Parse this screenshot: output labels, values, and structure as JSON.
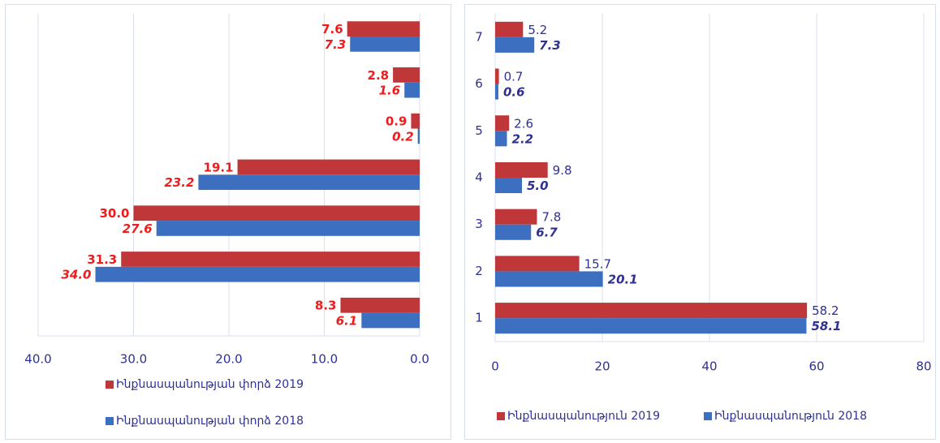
{
  "chart_data": [
    {
      "type": "bar",
      "orientation": "horizontal",
      "categories": [
        null,
        null,
        null,
        null,
        null,
        null,
        null
      ],
      "series": [
        {
          "name": "Ինքնասպանության փորձ 2019",
          "color": "#c0373a",
          "label_color": "#ee1c1c",
          "label_style": "bold",
          "values": [
            8.3,
            31.3,
            30.0,
            19.1,
            0.9,
            2.8,
            7.6
          ],
          "value_labels": [
            "8.3",
            "31.3",
            "30.0",
            "19.1",
            "0.9",
            "2.8",
            "7.6"
          ]
        },
        {
          "name": "Ինքնասպանության փորձ 2018",
          "color": "#3d6fc1",
          "label_color": "#ee1c1c",
          "label_style": "bold-italic",
          "values": [
            6.1,
            34.0,
            27.6,
            23.2,
            0.2,
            1.6,
            7.3
          ],
          "value_labels": [
            "6.1",
            "34.0",
            "27.6",
            "23.2",
            "0.2",
            "1.6",
            "7.3"
          ]
        }
      ],
      "xlim": [
        40,
        0
      ],
      "xticks": [
        {
          "value": 40,
          "label": "40.0"
        },
        {
          "value": 30,
          "label": "30.0"
        },
        {
          "value": 20,
          "label": "20.0"
        },
        {
          "value": 10,
          "label": "10.0"
        },
        {
          "value": 0,
          "label": "0.0"
        }
      ],
      "grid": true,
      "legend": "bottom"
    },
    {
      "type": "bar",
      "orientation": "horizontal",
      "categories": [
        "1",
        "2",
        "3",
        "4",
        "5",
        "6",
        "7"
      ],
      "series": [
        {
          "name": "Ինքնասպանություն 2019",
          "color": "#c0373a",
          "label_color": "#2e3192",
          "label_style": "normal",
          "values": [
            58.2,
            15.7,
            7.8,
            9.8,
            2.6,
            0.7,
            5.2
          ]
        },
        {
          "name": "Ինքնասպանություն 2018",
          "color": "#3d6fc1",
          "label_color": "#2e3192",
          "label_style": "bold-italic",
          "values": [
            58.1,
            20.1,
            6.7,
            5.0,
            2.2,
            0.6,
            7.3
          ],
          "value_labels": [
            "58.1",
            "20.1",
            "6.7",
            "5.0",
            "2.2",
            "0.6",
            "7.3"
          ]
        }
      ],
      "xlim": [
        0,
        80
      ],
      "xticks": [
        0,
        20,
        40,
        60,
        80
      ],
      "grid": true,
      "legend": "bottom"
    }
  ]
}
